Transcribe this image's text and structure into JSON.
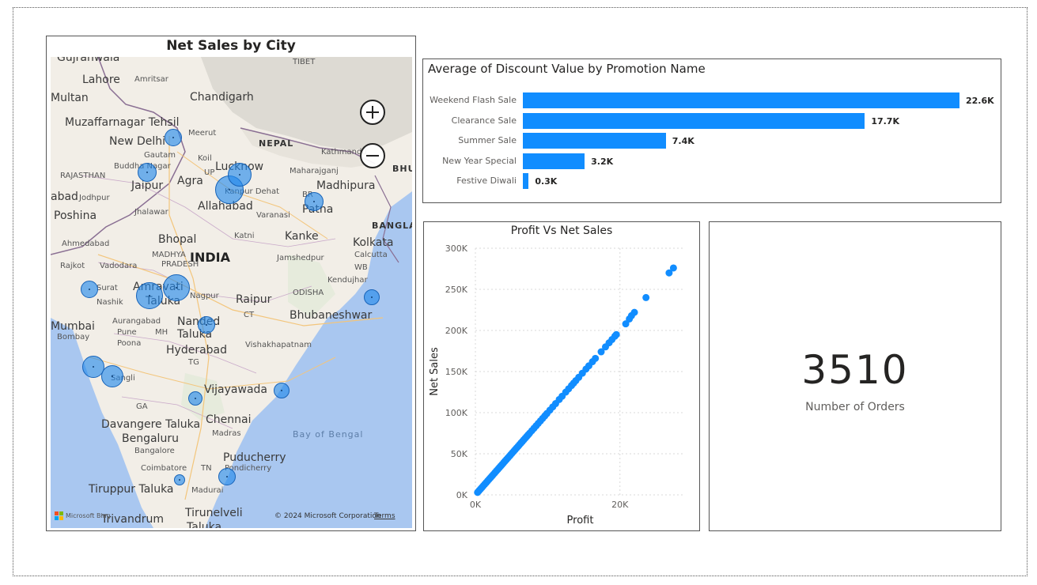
{
  "map": {
    "title": "Net Sales by City",
    "zoom_in_icon": "plus-icon",
    "zoom_out_icon": "minus-icon",
    "copyright": "© 2024 Microsoft Corporation",
    "terms": "Terms",
    "provider": "Microsoft Bing",
    "bubble_color": "#118dff",
    "places": [
      {
        "text": "Gujranwala",
        "cls": ""
      },
      {
        "text": "TIBET",
        "cls": "small"
      },
      {
        "text": "Lahore",
        "cls": ""
      },
      {
        "text": "Amritsar",
        "cls": "small"
      },
      {
        "text": "Multan",
        "cls": ""
      },
      {
        "text": "Chandigarh",
        "cls": ""
      },
      {
        "text": "Muzaffarnagar Tehsil",
        "cls": ""
      },
      {
        "text": "New Delhi",
        "cls": ""
      },
      {
        "text": "Meerut",
        "cls": "small"
      },
      {
        "text": "NEPAL",
        "cls": "region"
      },
      {
        "text": "Gautam",
        "cls": "small"
      },
      {
        "text": "Buddha Nagar",
        "cls": "small"
      },
      {
        "text": "Kathmandu",
        "cls": "small"
      },
      {
        "text": "Koil",
        "cls": "small"
      },
      {
        "text": "Lucknow",
        "cls": ""
      },
      {
        "text": "Maharajganj",
        "cls": "small"
      },
      {
        "text": "BHU",
        "cls": "region"
      },
      {
        "text": "RAJASTHAN",
        "cls": "small"
      },
      {
        "text": "Jaipur",
        "cls": ""
      },
      {
        "text": "Agra",
        "cls": ""
      },
      {
        "text": "UP",
        "cls": "small"
      },
      {
        "text": "Madhipura",
        "cls": ""
      },
      {
        "text": "abad",
        "cls": ""
      },
      {
        "text": "Jodhpur",
        "cls": "small"
      },
      {
        "text": "Kanpur Dehat",
        "cls": "small"
      },
      {
        "text": "Allahabad",
        "cls": ""
      },
      {
        "text": "BR",
        "cls": "small"
      },
      {
        "text": "Patna",
        "cls": ""
      },
      {
        "text": "Poshina",
        "cls": ""
      },
      {
        "text": "Jhalawar",
        "cls": "small"
      },
      {
        "text": "Varanasi",
        "cls": "small"
      },
      {
        "text": "BANGLA",
        "cls": "region"
      },
      {
        "text": "Bhopal",
        "cls": ""
      },
      {
        "text": "Katni",
        "cls": "small"
      },
      {
        "text": "Kanke",
        "cls": ""
      },
      {
        "text": "Ahmedabad",
        "cls": "small"
      },
      {
        "text": "Kolkata",
        "cls": ""
      },
      {
        "text": "INDIA",
        "cls": "country"
      },
      {
        "text": "MADHYA",
        "cls": "small"
      },
      {
        "text": "PRADESH",
        "cls": "small"
      },
      {
        "text": "Rajkot",
        "cls": "small"
      },
      {
        "text": "Vadodara",
        "cls": "small"
      },
      {
        "text": "Jamshedpur",
        "cls": "small"
      },
      {
        "text": "Calcutta",
        "cls": "small"
      },
      {
        "text": "WB",
        "cls": "small"
      },
      {
        "text": "Kendujhar",
        "cls": "small"
      },
      {
        "text": "Surat",
        "cls": "small"
      },
      {
        "text": "Amravati",
        "cls": ""
      },
      {
        "text": "Taluka",
        "cls": ""
      },
      {
        "text": "Nagpur",
        "cls": "small"
      },
      {
        "text": "Raipur",
        "cls": ""
      },
      {
        "text": "Nashik",
        "cls": "small"
      },
      {
        "text": "ODISHA",
        "cls": "small"
      },
      {
        "text": "CT",
        "cls": "small"
      },
      {
        "text": "Bhubaneshwar",
        "cls": ""
      },
      {
        "text": "Aurangabad",
        "cls": "small"
      },
      {
        "text": "Nanded",
        "cls": ""
      },
      {
        "text": "Mumbai",
        "cls": ""
      },
      {
        "text": "Pune",
        "cls": "small"
      },
      {
        "text": "Taluka",
        "cls": ""
      },
      {
        "text": "Bombay",
        "cls": "small"
      },
      {
        "text": "Poona",
        "cls": "small"
      },
      {
        "text": "MH",
        "cls": "small"
      },
      {
        "text": "Hyderabad",
        "cls": ""
      },
      {
        "text": "Vishakhapatnam",
        "cls": "small"
      },
      {
        "text": "TG",
        "cls": "small"
      },
      {
        "text": "Sangli",
        "cls": "small"
      },
      {
        "text": "Vijayawada",
        "cls": ""
      },
      {
        "text": "GA",
        "cls": "small"
      },
      {
        "text": "Chennai",
        "cls": ""
      },
      {
        "text": "Davangere Taluka",
        "cls": ""
      },
      {
        "text": "Bengaluru",
        "cls": ""
      },
      {
        "text": "Bay of Bengal",
        "cls": "water"
      },
      {
        "text": "Bangalore",
        "cls": "small"
      },
      {
        "text": "Madras",
        "cls": "small"
      },
      {
        "text": "Puducherry",
        "cls": ""
      },
      {
        "text": "Pondicherry",
        "cls": "small"
      },
      {
        "text": "Coimbatore",
        "cls": "small"
      },
      {
        "text": "TN",
        "cls": "small"
      },
      {
        "text": "Tiruppur Taluka",
        "cls": ""
      },
      {
        "text": "Madurai",
        "cls": "small"
      },
      {
        "text": "Trivandrum",
        "cls": ""
      },
      {
        "text": "Tirunelveli",
        "cls": ""
      },
      {
        "text": "Taluka",
        "cls": ""
      }
    ]
  },
  "bar_chart": {
    "title": "Average of Discount Value by Promotion Name",
    "color": "#118dff",
    "categories": [
      "Weekend Flash Sale",
      "Clearance Sale",
      "Summer Sale",
      "New Year Special",
      "Festive Diwali"
    ],
    "values": [
      22600,
      17700,
      7400,
      3200,
      300
    ],
    "labels": [
      "22.6K",
      "17.7K",
      "7.4K",
      "3.2K",
      "0.3K"
    ]
  },
  "scatter": {
    "title": "Profit Vs Net Sales",
    "xlabel": "Profit",
    "ylabel": "Net Sales",
    "x_ticks": [
      "0K",
      "20K"
    ],
    "y_ticks": [
      "0K",
      "50K",
      "100K",
      "150K",
      "200K",
      "250K",
      "300K"
    ]
  },
  "card": {
    "value": "3510",
    "label": "Number of Orders"
  },
  "chart_data": [
    {
      "type": "bar",
      "title": "Average of Discount Value by Promotion Name",
      "categories": [
        "Weekend Flash Sale",
        "Clearance Sale",
        "Summer Sale",
        "New Year Special",
        "Festive Diwali"
      ],
      "values": [
        22600,
        17700,
        7400,
        3200,
        300
      ],
      "orientation": "horizontal",
      "xlabel": "",
      "ylabel": ""
    },
    {
      "type": "scatter",
      "title": "Profit Vs Net Sales",
      "xlabel": "Profit",
      "ylabel": "Net Sales",
      "xlim": [
        0,
        29000
      ],
      "ylim": [
        0,
        300000
      ],
      "x_ticks": [
        0,
        20000
      ],
      "y_ticks": [
        0,
        50000,
        100000,
        150000,
        200000,
        250000,
        300000
      ],
      "grid": true,
      "points": [
        [
          300,
          3000
        ],
        [
          500,
          5000
        ],
        [
          700,
          7000
        ],
        [
          900,
          9000
        ],
        [
          1100,
          11000
        ],
        [
          1300,
          13000
        ],
        [
          1500,
          15000
        ],
        [
          1700,
          17000
        ],
        [
          1900,
          19000
        ],
        [
          2100,
          21000
        ],
        [
          2300,
          23000
        ],
        [
          2500,
          25000
        ],
        [
          2700,
          27000
        ],
        [
          2900,
          29000
        ],
        [
          3100,
          31000
        ],
        [
          3300,
          33000
        ],
        [
          3500,
          35000
        ],
        [
          3700,
          37000
        ],
        [
          3900,
          39000
        ],
        [
          4100,
          41000
        ],
        [
          4300,
          43000
        ],
        [
          4500,
          45000
        ],
        [
          4700,
          47000
        ],
        [
          4900,
          49000
        ],
        [
          5100,
          51000
        ],
        [
          5300,
          53000
        ],
        [
          5500,
          55000
        ],
        [
          5700,
          57000
        ],
        [
          5900,
          59000
        ],
        [
          6100,
          61000
        ],
        [
          6300,
          63000
        ],
        [
          6500,
          65000
        ],
        [
          6700,
          67000
        ],
        [
          6900,
          69000
        ],
        [
          7100,
          71000
        ],
        [
          7300,
          73000
        ],
        [
          7500,
          75000
        ],
        [
          7800,
          78000
        ],
        [
          8100,
          81000
        ],
        [
          8400,
          84000
        ],
        [
          8700,
          87000
        ],
        [
          9000,
          90000
        ],
        [
          9300,
          93000
        ],
        [
          9600,
          96000
        ],
        [
          9900,
          99000
        ],
        [
          10300,
          103000
        ],
        [
          10700,
          107000
        ],
        [
          11100,
          111000
        ],
        [
          11600,
          116000
        ],
        [
          12000,
          120000
        ],
        [
          12500,
          125000
        ],
        [
          12900,
          129000
        ],
        [
          13300,
          133000
        ],
        [
          13600,
          136000
        ],
        [
          13900,
          139000
        ],
        [
          14300,
          143000
        ],
        [
          14800,
          148000
        ],
        [
          15300,
          153000
        ],
        [
          15700,
          157000
        ],
        [
          16200,
          162000
        ],
        [
          16600,
          166000
        ],
        [
          17400,
          174000
        ],
        [
          18000,
          180000
        ],
        [
          18500,
          185000
        ],
        [
          18900,
          189000
        ],
        [
          19300,
          193000
        ],
        [
          19500,
          195000
        ],
        [
          20800,
          208000
        ],
        [
          21300,
          214000
        ],
        [
          21600,
          218000
        ],
        [
          22000,
          222000
        ],
        [
          23600,
          240000
        ],
        [
          26800,
          270000
        ],
        [
          27400,
          276000
        ]
      ]
    }
  ]
}
